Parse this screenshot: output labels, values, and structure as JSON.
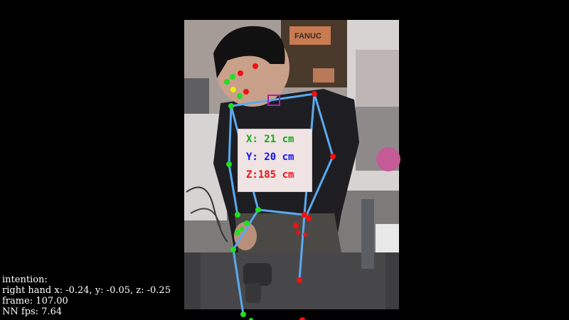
{
  "colors": {
    "skeleton": "#5aa9ef",
    "joint_left": "#22dd22",
    "joint_right": "#ee1111",
    "joint_nose": "#eeee00",
    "marker": "#aa22aa",
    "x_label": "#11aa11",
    "y_label": "#1111ee",
    "z_label": "#ee1111"
  },
  "coordinates": {
    "x": "X: 21 cm",
    "y": "Y: 20 cm",
    "z": "Z:185 cm"
  },
  "scene": {
    "box_label": "FANUC"
  },
  "hud": {
    "intention": "intention:",
    "right_hand": "right hand x: -0.24, y: -0.05, z: -0.25",
    "frame": "frame: 107.00",
    "fps": "NN fps: 7.64"
  }
}
